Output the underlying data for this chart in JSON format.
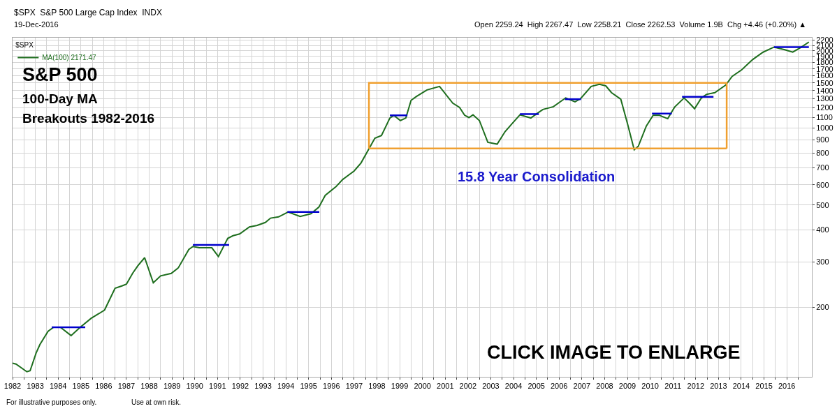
{
  "chart_data": {
    "type": "line",
    "title": "$SPX  S&P 500 Large Cap Index  INDX",
    "subtitle": "19-Dec-2016",
    "legend_title": "$SPX",
    "annotations": [
      "Open 2259.24  High 2267.47  Low 2258.21  Close 2262.53  Volume 1.9B  Chg +4.46 (+0.20%) ▲",
      "S&P 500",
      "100-Day MA",
      "Breakouts 1982-2016",
      "15.8 Year Consolidation",
      "CLICK IMAGE TO ENLARGE",
      "For illustrative purposes only.",
      "Use at own risk."
    ],
    "series": [
      {
        "name": "MA(100) 2171.47",
        "color": "#1e6e1e",
        "x": [
          1982.0,
          1982.15,
          1982.63,
          1982.77,
          1983.04,
          1983.2,
          1983.56,
          1983.8,
          1984.1,
          1984.57,
          1984.97,
          1985.45,
          1985.8,
          1986.04,
          1986.5,
          1986.8,
          1987.0,
          1987.27,
          1987.5,
          1987.8,
          1988.18,
          1988.5,
          1988.97,
          1989.28,
          1989.74,
          1989.92,
          1990.2,
          1990.4,
          1990.75,
          1991.04,
          1991.45,
          1991.68,
          1991.97,
          1992.4,
          1992.74,
          1993.1,
          1993.33,
          1993.68,
          1994.1,
          1994.63,
          1995.1,
          1995.45,
          1995.73,
          1996.2,
          1996.5,
          1997.0,
          1997.3,
          1997.68,
          1997.91,
          1998.2,
          1998.57,
          1998.74,
          1999.03,
          1999.27,
          1999.5,
          1999.74,
          2000.2,
          2000.75,
          2001.33,
          2001.63,
          2001.85,
          2002.04,
          2002.22,
          2002.5,
          2002.87,
          2003.28,
          2003.63,
          2003.93,
          2004.28,
          2004.76,
          2005.11,
          2005.29,
          2005.75,
          2006.29,
          2006.7,
          2006.94,
          2007.41,
          2007.77,
          2008.05,
          2008.3,
          2008.71,
          2009.0,
          2009.3,
          2009.48,
          2009.83,
          2010.13,
          2010.41,
          2010.77,
          2011.07,
          2011.49,
          2011.72,
          2011.95,
          2012.25,
          2012.48,
          2012.84,
          2013.31,
          2013.6,
          2014.02,
          2014.5,
          2014.96,
          2015.44,
          2015.91,
          2016.26,
          2016.61,
          2016.97
        ],
        "values": [
          121,
          120,
          112,
          113,
          133,
          143,
          161,
          167,
          167,
          155,
          167,
          181,
          189,
          195,
          237,
          242,
          246,
          271,
          290,
          312,
          249,
          265,
          271,
          285,
          336,
          345,
          341,
          341,
          341,
          315,
          371,
          380,
          386,
          411,
          417,
          428,
          445,
          450,
          470,
          452,
          463,
          491,
          546,
          590,
          630,
          680,
          730,
          839,
          912,
          935,
          1094,
          1120,
          1069,
          1094,
          1282,
          1328,
          1407,
          1452,
          1250,
          1203,
          1122,
          1098,
          1125,
          1069,
          879,
          865,
          968,
          1038,
          1125,
          1094,
          1152,
          1181,
          1211,
          1310,
          1265,
          1300,
          1452,
          1480,
          1460,
          1374,
          1295,
          1043,
          822,
          849,
          1017,
          1120,
          1120,
          1087,
          1205,
          1310,
          1250,
          1189,
          1310,
          1352,
          1374,
          1468,
          1589,
          1686,
          1849,
          1976,
          2068,
          2020,
          1976,
          2060,
          2163
        ]
      },
      {
        "color": "#f0a030",
        "x": [
          1997.65,
          1997.65,
          2013.36,
          2013.36
        ],
        "values": [
          832,
          1500,
          1500,
          832
        ]
      },
      {
        "color": "#f0a030",
        "x": [
          1997.65,
          2013.36
        ],
        "values": [
          832,
          832
        ]
      },
      {
        "color": "#0000cc",
        "x": [
          1983.72,
          1985.19
        ],
        "values": [
          167,
          167
        ]
      },
      {
        "color": "#0000cc",
        "x": [
          1989.92,
          1991.51
        ],
        "values": [
          350,
          350
        ]
      },
      {
        "color": "#0000cc",
        "x": [
          1994.07,
          1995.47
        ],
        "values": [
          470,
          470
        ]
      },
      {
        "color": "#0000cc",
        "x": [
          1998.57,
          1999.34
        ],
        "values": [
          1120,
          1120
        ]
      },
      {
        "color": "#0000cc",
        "x": [
          2004.28,
          2005.11
        ],
        "values": [
          1133,
          1133
        ]
      },
      {
        "color": "#0000cc",
        "x": [
          2006.26,
          2006.96
        ],
        "values": [
          1295,
          1295
        ]
      },
      {
        "color": "#0000cc",
        "x": [
          2010.08,
          2010.95
        ],
        "values": [
          1138,
          1138
        ]
      },
      {
        "color": "#0000cc",
        "x": [
          2011.4,
          2012.78
        ],
        "values": [
          1322,
          1322
        ]
      },
      {
        "color": "#0000cc",
        "x": [
          2015.44,
          2016.97
        ],
        "values": [
          2068,
          2068
        ]
      }
    ],
    "xlim": [
      1982,
      2017.1
    ],
    "xticks": [
      1982,
      {
        "value": 1982.5,
        "label": null
      },
      1983,
      {
        "value": 1983.5,
        "label": null
      },
      1984,
      {
        "value": 1984.5,
        "label": null
      },
      1985,
      {
        "value": 1985.5,
        "label": null
      },
      1986,
      {
        "value": 1986.5,
        "label": null
      },
      1987,
      {
        "value": 1987.5,
        "label": null
      },
      1988,
      {
        "value": 1988.5,
        "label": null
      },
      1989,
      {
        "value": 1989.5,
        "label": null
      },
      1990,
      {
        "value": 1990.5,
        "label": null
      },
      1991,
      {
        "value": 1991.5,
        "label": null
      },
      1992,
      {
        "value": 1992.5,
        "label": null
      },
      1993,
      {
        "value": 1993.5,
        "label": null
      },
      1994,
      {
        "value": 1994.5,
        "label": null
      },
      1995,
      {
        "value": 1995.5,
        "label": null
      },
      1996,
      {
        "value": 1996.5,
        "label": null
      },
      1997,
      {
        "value": 1997.5,
        "label": null
      },
      1998,
      {
        "value": 1998.5,
        "label": null
      },
      1999,
      {
        "value": 1999.5,
        "label": null
      },
      2000,
      {
        "value": 2000.5,
        "label": null
      },
      2001,
      {
        "value": 2001.5,
        "label": null
      },
      2002,
      {
        "value": 2002.5,
        "label": null
      },
      2003,
      {
        "value": 2003.5,
        "label": null
      },
      2004,
      {
        "value": 2004.5,
        "label": null
      },
      2005,
      {
        "value": 2005.5,
        "label": null
      },
      2006,
      {
        "value": 2006.5,
        "label": null
      },
      2007,
      {
        "value": 2007.5,
        "label": null
      },
      2008,
      {
        "value": 2008.5,
        "label": null
      },
      2009,
      {
        "value": 2009.5,
        "label": null
      },
      2010,
      {
        "value": 2010.5,
        "label": null
      },
      2011,
      {
        "value": 2011.5,
        "label": null
      },
      2012,
      {
        "value": 2012.5,
        "label": null
      },
      2013,
      {
        "value": 2013.5,
        "label": null
      },
      2014,
      {
        "value": 2014.5,
        "label": null
      },
      2015,
      {
        "value": 2015.5,
        "label": null
      },
      2016,
      {
        "value": 2016.5,
        "label": null
      }
    ],
    "ylim": [
      107,
      2250
    ],
    "yticks": [
      200,
      300,
      400,
      500,
      600,
      700,
      800,
      900,
      1000,
      1100,
      1200,
      1300,
      1400,
      1500,
      1600,
      1700,
      1800,
      1900,
      2000,
      2100,
      2200
    ],
    "log": true,
    "grid": true,
    "legend": "top left",
    "marker": "none",
    "line_style": "solid"
  }
}
